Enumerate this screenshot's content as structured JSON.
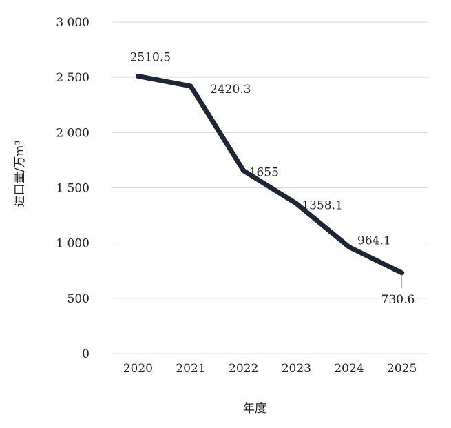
{
  "chart_data": {
    "type": "line",
    "title": "",
    "xlabel": "年度",
    "ylabel": "进口量/万m³",
    "categories": [
      "2020",
      "2021",
      "2022",
      "2023",
      "2024",
      "2025"
    ],
    "series": [
      {
        "values": [
          2510.5,
          2420.3,
          1655,
          1358.1,
          964.1,
          730.6
        ],
        "data_labels": [
          "2510.5",
          "2420.3",
          "1655",
          "1358.1",
          "964.1",
          "730.6"
        ],
        "color": "#1f2633"
      }
    ],
    "ylim": [
      0,
      3000
    ],
    "yticks": [
      0,
      500,
      1000,
      1500,
      2000,
      2500,
      3000
    ],
    "ytick_labels": [
      "0",
      "500",
      "1 000",
      "1 500",
      "2 000",
      "2 500",
      "3 000"
    ],
    "grid": true,
    "legend": "none",
    "colors": {
      "line": "#1f2633",
      "grid": "#d9d9d9",
      "text": "#222222"
    }
  }
}
